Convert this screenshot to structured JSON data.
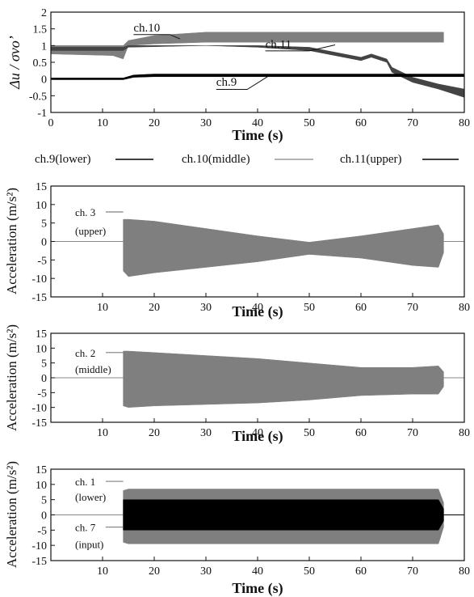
{
  "colors": {
    "black": "#000000",
    "gray": "#7f7f7f",
    "light_gray": "#9a9a9a",
    "axis": "#111111"
  },
  "chart_data": [
    {
      "type": "line",
      "id": "pore-pressure",
      "xlabel": "Time (s)",
      "ylabel": "Δu / σvo’",
      "xlim": [
        0,
        80
      ],
      "ylim": [
        -1,
        2
      ],
      "xticks": [
        0,
        10,
        20,
        30,
        40,
        50,
        60,
        70,
        80
      ],
      "yticks": [
        -1,
        -0.5,
        0,
        0.5,
        1,
        1.5,
        2
      ],
      "grid": false,
      "legend_position": "below",
      "legend": [
        {
          "label": "ch.9(lower)",
          "color": "#000000"
        },
        {
          "label": "ch.10(middle)",
          "color": "#9a9a9a"
        },
        {
          "label": "ch.11(upper)",
          "color": "#000000"
        }
      ],
      "series": [
        {
          "name": "ch.10",
          "color": "#7f7f7f",
          "x": [
            0,
            12,
            14,
            15,
            20,
            30,
            40,
            50,
            60,
            70,
            75,
            76
          ],
          "lower": [
            0.75,
            0.7,
            0.6,
            1.0,
            1.05,
            1.1,
            1.1,
            1.1,
            1.1,
            1.1,
            1.1,
            1.1
          ],
          "upper": [
            1.0,
            1.0,
            1.0,
            1.15,
            1.3,
            1.4,
            1.4,
            1.4,
            1.4,
            1.4,
            1.4,
            1.4
          ]
        },
        {
          "name": "ch.11",
          "color": "#444444",
          "x": [
            0,
            14,
            15,
            30,
            40,
            50,
            55,
            60,
            62,
            65,
            66,
            70,
            75,
            80
          ],
          "lower": [
            0.85,
            0.85,
            0.95,
            1.0,
            0.95,
            0.85,
            0.7,
            0.55,
            0.65,
            0.5,
            0.2,
            -0.1,
            -0.3,
            -0.55
          ],
          "upper": [
            0.95,
            0.95,
            1.0,
            1.0,
            1.0,
            0.95,
            0.8,
            0.65,
            0.75,
            0.6,
            0.35,
            0.05,
            -0.15,
            -0.3
          ]
        },
        {
          "name": "ch.9",
          "color": "#000000",
          "x": [
            0,
            14,
            16,
            20,
            80
          ],
          "lower": [
            -0.02,
            -0.02,
            0.05,
            0.07,
            0.07
          ],
          "upper": [
            0.03,
            0.03,
            0.12,
            0.15,
            0.15
          ]
        }
      ],
      "annotations": [
        {
          "text": "ch.10",
          "x": 16,
          "y": 1.42
        },
        {
          "text": "ch.11",
          "x": 41.5,
          "y": 0.92
        },
        {
          "text": "ch.9",
          "x": 32,
          "y": -0.2
        }
      ]
    },
    {
      "type": "area",
      "id": "acc-upper",
      "xlabel": "Time (s)",
      "ylabel": "Acceleration (m/s²)",
      "xlim": [
        0,
        80
      ],
      "ylim": [
        -15,
        15
      ],
      "xticks": [
        10,
        20,
        30,
        40,
        50,
        60,
        70,
        80
      ],
      "yticks": [
        -15,
        -10,
        -5,
        0,
        5,
        10,
        15
      ],
      "grid": false,
      "labels": [
        {
          "text": "ch. 3",
          "x": 5,
          "y": 8,
          "line_to_x": 14
        },
        {
          "text": "(upper)",
          "x": 5,
          "y": 3
        }
      ],
      "series": [
        {
          "name": "ch. 3",
          "color": "#7f7f7f",
          "x": [
            14,
            15,
            20,
            30,
            40,
            50,
            60,
            70,
            75,
            76
          ],
          "upper": [
            6,
            6,
            5.5,
            3.5,
            1.5,
            -0.2,
            1.5,
            3.5,
            4.5,
            2
          ],
          "lower": [
            -8,
            -9.5,
            -8.5,
            -7,
            -5.5,
            -3.5,
            -4.5,
            -6.5,
            -7,
            -3
          ]
        }
      ]
    },
    {
      "type": "area",
      "id": "acc-middle",
      "xlabel": "Time (s)",
      "ylabel": "Acceleration (m/s²)",
      "xlim": [
        0,
        80
      ],
      "ylim": [
        -15,
        15
      ],
      "xticks": [
        10,
        20,
        30,
        40,
        50,
        60,
        70,
        80
      ],
      "yticks": [
        -15,
        -10,
        -5,
        0,
        5,
        10,
        15
      ],
      "grid": false,
      "labels": [
        {
          "text": "ch. 2",
          "x": 5,
          "y": 8.5,
          "line_to_x": 14
        },
        {
          "text": "(middle)",
          "x": 5,
          "y": 3
        }
      ],
      "series": [
        {
          "name": "ch. 2",
          "color": "#7f7f7f",
          "x": [
            14,
            15,
            20,
            30,
            40,
            50,
            60,
            70,
            75,
            76
          ],
          "upper": [
            9,
            9,
            8.5,
            7.5,
            6.5,
            5,
            3.5,
            3.5,
            4,
            2
          ],
          "lower": [
            -9.5,
            -10,
            -9.5,
            -9,
            -8.5,
            -7.5,
            -6,
            -5.5,
            -5.5,
            -3
          ]
        }
      ]
    },
    {
      "type": "area",
      "id": "acc-lower",
      "xlabel": "Time (s)",
      "ylabel": "Acceleration (m/s²)",
      "xlim": [
        0,
        80
      ],
      "ylim": [
        -15,
        15
      ],
      "xticks": [
        10,
        20,
        30,
        40,
        50,
        60,
        70,
        80
      ],
      "yticks": [
        -15,
        -10,
        -5,
        0,
        5,
        10,
        15
      ],
      "grid": false,
      "labels": [
        {
          "text": "ch. 1",
          "x": 5,
          "y": 11,
          "line_to_x": 14
        },
        {
          "text": "(lower)",
          "x": 5,
          "y": 6
        },
        {
          "text": "ch. 7",
          "x": 5,
          "y": -4,
          "line_to_x": 14
        },
        {
          "text": "(input)",
          "x": 5,
          "y": -9.5
        }
      ],
      "series": [
        {
          "name": "ch. 1",
          "color": "#7f7f7f",
          "x": [
            14,
            15,
            20,
            30,
            40,
            50,
            60,
            70,
            75,
            76
          ],
          "upper": [
            8,
            8.5,
            8.5,
            8.5,
            8.5,
            8.5,
            8.5,
            8.5,
            8.5,
            4
          ],
          "lower": [
            -9,
            -9.5,
            -9.5,
            -9.5,
            -9.5,
            -9.5,
            -9.5,
            -9.5,
            -9.5,
            -4
          ]
        },
        {
          "name": "ch. 7",
          "color": "#000000",
          "x": [
            14,
            15,
            20,
            30,
            40,
            50,
            60,
            70,
            75,
            76
          ],
          "upper": [
            5,
            5,
            5,
            5,
            5,
            5,
            5,
            5,
            5,
            2
          ],
          "lower": [
            -5,
            -5,
            -5,
            -5,
            -5,
            -5,
            -5,
            -5,
            -5,
            -2
          ]
        }
      ]
    }
  ]
}
